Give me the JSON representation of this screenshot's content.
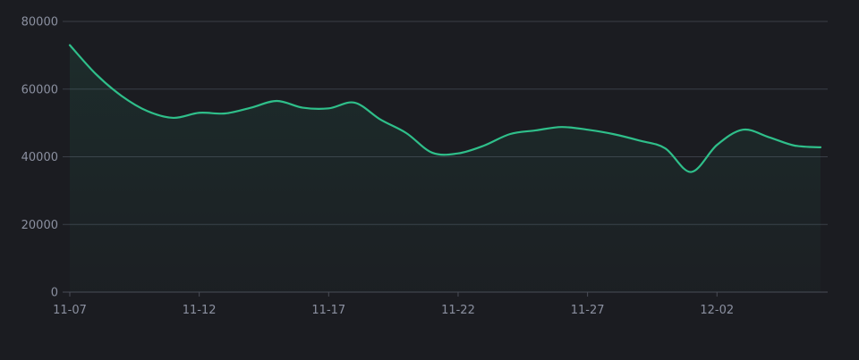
{
  "chart_data": {
    "type": "area",
    "title": "",
    "xlabel": "",
    "ylabel": "",
    "x": [
      "11-07",
      "11-08",
      "11-09",
      "11-10",
      "11-11",
      "11-12",
      "11-13",
      "11-14",
      "11-15",
      "11-16",
      "11-17",
      "11-18",
      "11-19",
      "11-20",
      "11-21",
      "11-22",
      "11-23",
      "11-24",
      "11-25",
      "11-26",
      "11-27",
      "11-28",
      "11-29",
      "11-30",
      "12-01",
      "12-02",
      "12-03",
      "12-04",
      "12-05",
      "12-06"
    ],
    "x_ticks": [
      "11-07",
      "11-12",
      "11-17",
      "11-22",
      "11-27",
      "12-02"
    ],
    "series": [
      {
        "values": [
          73000,
          64500,
          58000,
          53500,
          51500,
          53000,
          52800,
          54500,
          56500,
          54500,
          54300,
          56000,
          51000,
          47000,
          41200,
          41000,
          43300,
          46700,
          47800,
          48800,
          48000,
          46700,
          44800,
          42500,
          35500,
          43500,
          48000,
          45800,
          43300,
          42800
        ]
      }
    ],
    "ylim": [
      0,
      80000
    ],
    "y_ticks": [
      0,
      20000,
      40000,
      60000,
      80000
    ],
    "grid": true,
    "legend": "none",
    "line_color": "#2fbf8a",
    "area_color": "#2fbf8a",
    "grid_color": "#3b3e48",
    "axis_color": "#4a4d57",
    "label_color": "#8b90a0",
    "background": "#1b1c21"
  }
}
